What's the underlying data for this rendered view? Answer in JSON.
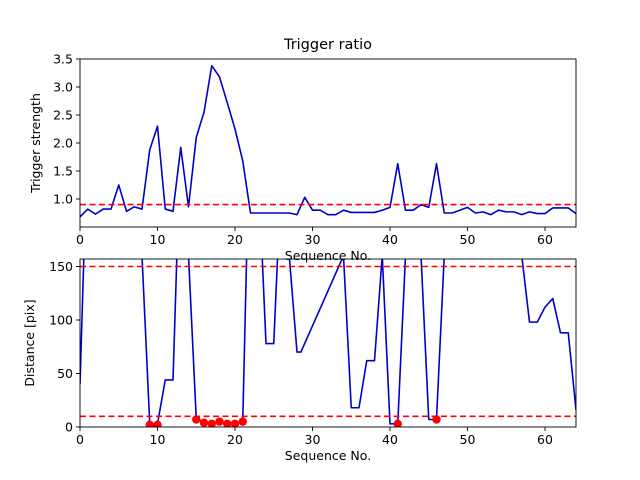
{
  "chart_data": [
    {
      "type": "line",
      "title": "Trigger ratio",
      "xlabel": "Sequence No.",
      "ylabel": "Trigger strength",
      "xlim": [
        0,
        64
      ],
      "ylim": [
        0.5,
        3.5
      ],
      "xticks": [
        "0",
        "10",
        "20",
        "30",
        "40",
        "50",
        "60"
      ],
      "yticks": [
        "1.0",
        "1.5",
        "2.0",
        "2.5",
        "3.0",
        "3.5"
      ],
      "series": [
        {
          "color": "#0000cc",
          "x": [
            0,
            1,
            2,
            3,
            4,
            5,
            6,
            7,
            8,
            9,
            10,
            11,
            12,
            13,
            14,
            15,
            16,
            17,
            18,
            19,
            20,
            21,
            22,
            23,
            24,
            25,
            26,
            27,
            28,
            29,
            30,
            31,
            32,
            33,
            34,
            35,
            36,
            37,
            38,
            39,
            40,
            41,
            42,
            43,
            44,
            45,
            46,
            47,
            48,
            49,
            50,
            51,
            52,
            53,
            54,
            55,
            56,
            57,
            58,
            59,
            60,
            61,
            62,
            63,
            64
          ],
          "values": [
            0.68,
            0.82,
            0.73,
            0.82,
            0.82,
            1.25,
            0.78,
            0.86,
            0.82,
            1.88,
            2.3,
            0.82,
            0.78,
            1.92,
            0.86,
            2.1,
            2.55,
            3.38,
            3.18,
            2.72,
            2.25,
            1.68,
            0.75,
            0.75,
            0.75,
            0.75,
            0.75,
            0.75,
            0.72,
            1.03,
            0.8,
            0.8,
            0.72,
            0.72,
            0.8,
            0.76,
            0.76,
            0.76,
            0.76,
            0.8,
            0.85,
            1.63,
            0.8,
            0.8,
            0.9,
            0.85,
            1.63,
            0.75,
            0.75,
            0.8,
            0.85,
            0.75,
            0.77,
            0.72,
            0.8,
            0.77,
            0.77,
            0.72,
            0.77,
            0.74,
            0.74,
            0.84,
            0.84,
            0.84,
            0.74
          ]
        }
      ],
      "threshold": 0.9,
      "threshold_color": "#ff0000"
    },
    {
      "type": "line",
      "xlabel": "Sequence No.",
      "ylabel": "Distance [pix]",
      "xlim": [
        0,
        64
      ],
      "ylim": [
        0,
        157
      ],
      "xticks": [
        "0",
        "10",
        "20",
        "30",
        "40",
        "50",
        "60"
      ],
      "yticks": [
        "0",
        "50",
        "100",
        "150"
      ],
      "series": [
        {
          "color": "#0000cc",
          "x": [
            0,
            0.5,
            1,
            8,
            9,
            10,
            11,
            12,
            12.5,
            14,
            15,
            16,
            17,
            18,
            19,
            20,
            21,
            21.5,
            23.5,
            24,
            25,
            25.5,
            27,
            28,
            28.5,
            34,
            35,
            36,
            37,
            38,
            39,
            40,
            41,
            42,
            44,
            45,
            46,
            47,
            57,
            58,
            59,
            60,
            61,
            62,
            63,
            64
          ],
          "values": [
            40,
            160,
            160,
            160,
            3,
            3,
            44,
            44,
            160,
            160,
            8,
            4,
            3,
            5,
            3,
            3,
            5,
            160,
            160,
            78,
            78,
            160,
            160,
            70,
            70,
            160,
            18,
            18,
            62,
            62,
            160,
            3,
            3,
            160,
            160,
            7,
            7,
            160,
            160,
            98,
            98,
            112,
            120,
            88,
            88,
            16
          ]
        },
        {
          "type": "scatter",
          "color": "#ff0000",
          "x": [
            9,
            10,
            15,
            16,
            17,
            18,
            19,
            20,
            21,
            41,
            46
          ],
          "values": [
            2,
            2,
            7,
            4,
            3,
            5,
            3,
            3,
            5,
            3,
            7
          ]
        }
      ],
      "thresholds": [
        150,
        10
      ],
      "threshold_color": "#ff0000"
    }
  ]
}
